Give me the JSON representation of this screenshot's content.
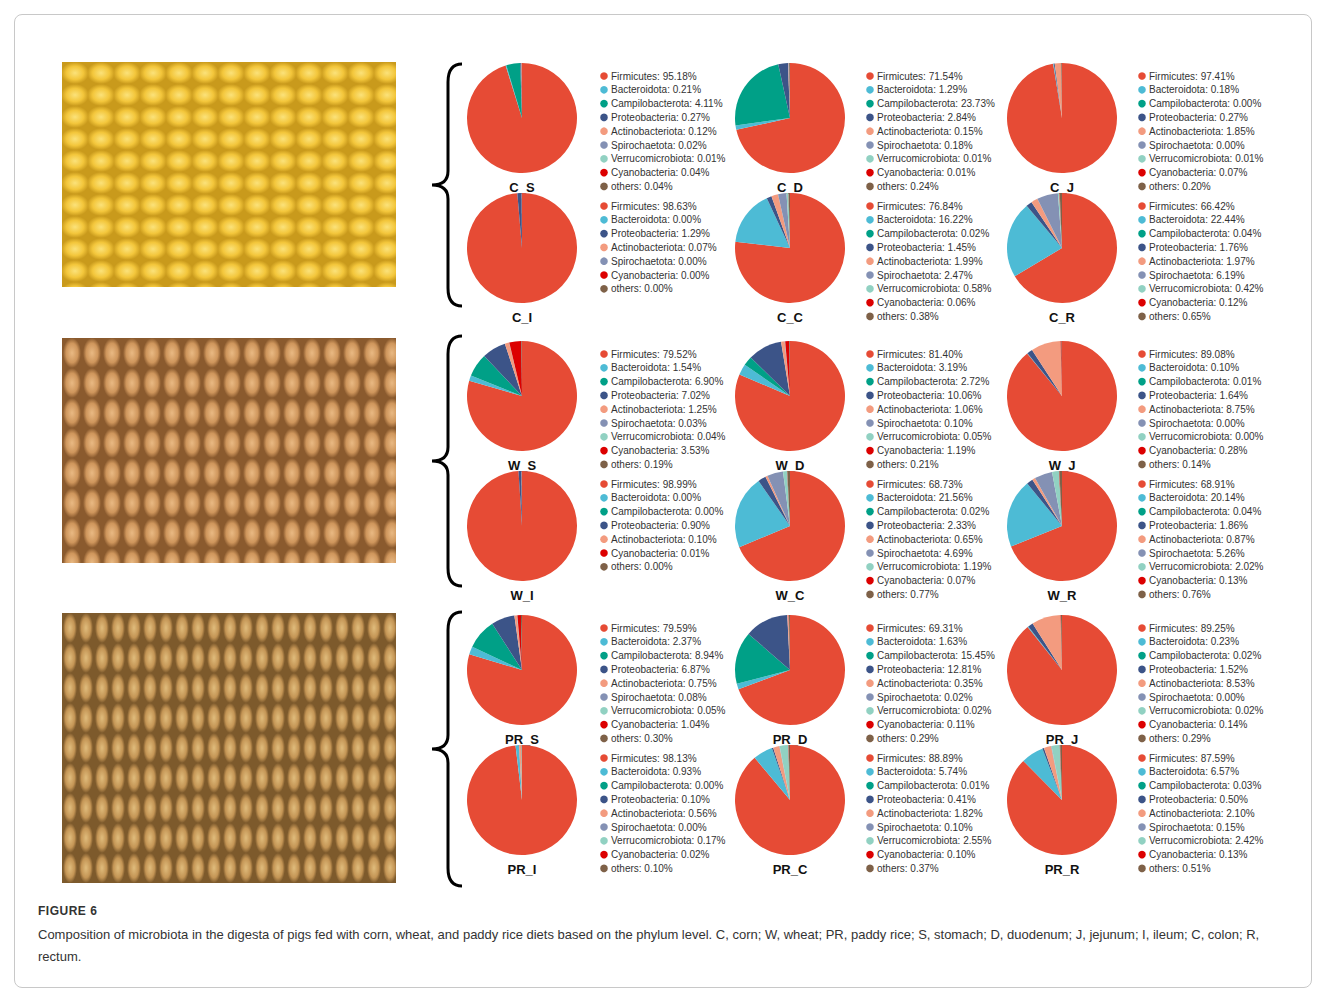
{
  "figure": {
    "label": "FIGURE 6",
    "caption": "Composition of microbiota in the digesta of pigs fed with corn, wheat, and paddy rice diets based on the phylum level. C, corn; W, wheat; PR, paddy rice; S, stomach; D, duodenum; J, jejunum; I, ileum; C, colon; R, rectum."
  },
  "chart_data": [
    {
      "type": "pie",
      "title": "C_S",
      "legend": "right",
      "categories": [
        "Firmicutes",
        "Bacteroidota",
        "Campilobacterota",
        "Proteobacteria",
        "Actinobacteriota",
        "Spirochaetota",
        "Verrucomicrobiota",
        "Cyanobacteria",
        "others"
      ],
      "values": [
        95.18,
        0.21,
        4.11,
        0.27,
        0.12,
        0.02,
        0.01,
        0.04,
        0.04
      ],
      "value_labels": [
        "Firmicutes: 95.18%",
        "Bacteroidota: 0.21%",
        "Campilobacterota: 4.11%",
        "Proteobacteria: 0.27%",
        "Actinobacteriota: 0.12%",
        "Spirochaetota: 0.02%",
        "Verrucomicrobiota: 0.01%",
        "Cyanobacteria: 0.04%",
        "others: 0.04%"
      ],
      "colors": [
        "#E64B35",
        "#4DBBD5",
        "#00A087",
        "#3C5488",
        "#F39B7F",
        "#8491B4",
        "#91D1C2",
        "#DC0000",
        "#7E6148"
      ]
    },
    {
      "type": "pie",
      "title": "C_D",
      "legend": "right",
      "categories": [
        "Firmicutes",
        "Bacteroidota",
        "Campilobacterota",
        "Proteobacteria",
        "Actinobacteriota",
        "Spirochaetota",
        "Verrucomicrobiota",
        "Cyanobacteria",
        "others"
      ],
      "values": [
        71.54,
        1.29,
        23.73,
        2.84,
        0.15,
        0.18,
        0.01,
        0.01,
        0.24
      ],
      "value_labels": [
        "Firmicutes: 71.54%",
        "Bacteroidota: 1.29%",
        "Campilobacterota: 23.73%",
        "Proteobacteria: 2.84%",
        "Actinobacteriota: 0.15%",
        "Spirochaetota: 0.18%",
        "Verrucomicrobiota: 0.01%",
        "Cyanobacteria: 0.01%",
        "others: 0.24%"
      ],
      "colors": [
        "#E64B35",
        "#4DBBD5",
        "#00A087",
        "#3C5488",
        "#F39B7F",
        "#8491B4",
        "#91D1C2",
        "#DC0000",
        "#7E6148"
      ]
    },
    {
      "type": "pie",
      "title": "C_J",
      "legend": "right",
      "categories": [
        "Firmicutes",
        "Bacteroidota",
        "Campilobacterota",
        "Proteobacteria",
        "Actinobacteriota",
        "Spirochaetota",
        "Verrucomicrobiota",
        "Cyanobacteria",
        "others"
      ],
      "values": [
        97.41,
        0.18,
        0.0,
        0.27,
        1.85,
        0.0,
        0.01,
        0.07,
        0.2
      ],
      "value_labels": [
        "Firmicutes: 97.41%",
        "Bacteroidota: 0.18%",
        "Campilobacterota: 0.00%",
        "Proteobacteria: 0.27%",
        "Actinobacteriota: 1.85%",
        "Spirochaetota: 0.00%",
        "Verrucomicrobiota: 0.01%",
        "Cyanobacteria: 0.07%",
        "others: 0.20%"
      ],
      "colors": [
        "#E64B35",
        "#4DBBD5",
        "#00A087",
        "#3C5488",
        "#F39B7F",
        "#8491B4",
        "#91D1C2",
        "#DC0000",
        "#7E6148"
      ]
    },
    {
      "type": "pie",
      "title": "C_I",
      "legend": "right",
      "categories": [
        "Firmicutes",
        "Bacteroidota",
        "Proteobacteria",
        "Actinobacteriota",
        "Spirochaetota",
        "Cyanobacteria",
        "others"
      ],
      "values": [
        98.63,
        0.0,
        1.29,
        0.07,
        0.0,
        0.0,
        0.0
      ],
      "value_labels": [
        "Firmicutes: 98.63%",
        "Bacteroidota: 0.00%",
        "Proteobacteria: 1.29%",
        "Actinobacteriota: 0.07%",
        "Spirochaetota: 0.00%",
        "Cyanobacteria: 0.00%",
        "others: 0.00%"
      ],
      "colors": [
        "#E64B35",
        "#4DBBD5",
        "#3C5488",
        "#F39B7F",
        "#8491B4",
        "#DC0000",
        "#7E6148"
      ]
    },
    {
      "type": "pie",
      "title": "C_C",
      "legend": "right",
      "categories": [
        "Firmicutes",
        "Bacteroidota",
        "Campilobacterota",
        "Proteobacteria",
        "Actinobacteriota",
        "Spirochaetota",
        "Verrucomicrobiota",
        "Cyanobacteria",
        "others"
      ],
      "values": [
        76.84,
        16.22,
        0.02,
        1.45,
        1.99,
        2.47,
        0.58,
        0.06,
        0.38
      ],
      "value_labels": [
        "Firmicutes: 76.84%",
        "Bacteroidota: 16.22%",
        "Campilobacterota: 0.02%",
        "Proteobacteria: 1.45%",
        "Actinobacteriota: 1.99%",
        "Spirochaetota: 2.47%",
        "Verrucomicrobiota: 0.58%",
        "Cyanobacteria: 0.06%",
        "others: 0.38%"
      ],
      "colors": [
        "#E64B35",
        "#4DBBD5",
        "#00A087",
        "#3C5488",
        "#F39B7F",
        "#8491B4",
        "#91D1C2",
        "#DC0000",
        "#7E6148"
      ]
    },
    {
      "type": "pie",
      "title": "C_R",
      "legend": "right",
      "categories": [
        "Firmicutes",
        "Bacteroidota",
        "Campilobacterota",
        "Proteobacteria",
        "Actinobacteriota",
        "Spirochaetota",
        "Verrucomicrobiota",
        "Cyanobacteria",
        "others"
      ],
      "values": [
        66.42,
        22.44,
        0.04,
        1.76,
        1.97,
        6.19,
        0.42,
        0.12,
        0.65
      ],
      "value_labels": [
        "Firmicutes: 66.42%",
        "Bacteroidota: 22.44%",
        "Campilobacterota: 0.04%",
        "Proteobacteria: 1.76%",
        "Actinobacteriota: 1.97%",
        "Spirochaetota: 6.19%",
        "Verrucomicrobiota: 0.42%",
        "Cyanobacteria: 0.12%",
        "others: 0.65%"
      ],
      "colors": [
        "#E64B35",
        "#4DBBD5",
        "#00A087",
        "#3C5488",
        "#F39B7F",
        "#8491B4",
        "#91D1C2",
        "#DC0000",
        "#7E6148"
      ]
    },
    {
      "type": "pie",
      "title": "W_S",
      "legend": "right",
      "categories": [
        "Firmicutes",
        "Bacteroidota",
        "Campilobacterota",
        "Proteobacteria",
        "Actinobacteriota",
        "Spirochaetota",
        "Verrucomicrobiota",
        "Cyanobacteria",
        "others"
      ],
      "values": [
        79.52,
        1.54,
        6.9,
        7.02,
        1.25,
        0.03,
        0.04,
        3.53,
        0.19
      ],
      "value_labels": [
        "Firmicutes: 79.52%",
        "Bacteroidota: 1.54%",
        "Campilobacterota: 6.90%",
        "Proteobacteria: 7.02%",
        "Actinobacteriota: 1.25%",
        "Spirochaetota: 0.03%",
        "Verrucomicrobiota: 0.04%",
        "Cyanobacteria: 3.53%",
        "others: 0.19%"
      ],
      "colors": [
        "#E64B35",
        "#4DBBD5",
        "#00A087",
        "#3C5488",
        "#F39B7F",
        "#8491B4",
        "#91D1C2",
        "#DC0000",
        "#7E6148"
      ]
    },
    {
      "type": "pie",
      "title": "W_D",
      "legend": "right",
      "categories": [
        "Firmicutes",
        "Bacteroidota",
        "Campilobacterota",
        "Proteobacteria",
        "Actinobacteriota",
        "Spirochaetota",
        "Verrucomicrobiota",
        "Cyanobacteria",
        "others"
      ],
      "values": [
        81.4,
        3.19,
        2.72,
        10.06,
        1.06,
        0.1,
        0.05,
        1.19,
        0.21
      ],
      "value_labels": [
        "Firmicutes: 81.40%",
        "Bacteroidota: 3.19%",
        "Campilobacterota: 2.72%",
        "Proteobacteria: 10.06%",
        "Actinobacteriota: 1.06%",
        "Spirochaetota: 0.10%",
        "Verrucomicrobiota: 0.05%",
        "Cyanobacteria: 1.19%",
        "others: 0.21%"
      ],
      "colors": [
        "#E64B35",
        "#4DBBD5",
        "#00A087",
        "#3C5488",
        "#F39B7F",
        "#8491B4",
        "#91D1C2",
        "#DC0000",
        "#7E6148"
      ]
    },
    {
      "type": "pie",
      "title": "W_J",
      "legend": "right",
      "categories": [
        "Firmicutes",
        "Bacteroidota",
        "Campilobacterota",
        "Proteobacteria",
        "Actinobacteriota",
        "Spirochaetota",
        "Verrucomicrobiota",
        "Cyanobacteria",
        "others"
      ],
      "values": [
        89.08,
        0.1,
        0.01,
        1.64,
        8.75,
        0.0,
        0.0,
        0.28,
        0.14
      ],
      "value_labels": [
        "Firmicutes: 89.08%",
        "Bacteroidota: 0.10%",
        "Campilobacterota: 0.01%",
        "Proteobacteria: 1.64%",
        "Actinobacteriota: 8.75%",
        "Spirochaetota: 0.00%",
        "Verrucomicrobiota: 0.00%",
        "Cyanobacteria: 0.28%",
        "others: 0.14%"
      ],
      "colors": [
        "#E64B35",
        "#4DBBD5",
        "#00A087",
        "#3C5488",
        "#F39B7F",
        "#8491B4",
        "#91D1C2",
        "#DC0000",
        "#7E6148"
      ]
    },
    {
      "type": "pie",
      "title": "W_I",
      "legend": "right",
      "categories": [
        "Firmicutes",
        "Bacteroidota",
        "Campilobacterota",
        "Proteobacteria",
        "Actinobacteriota",
        "Cyanobacteria",
        "others"
      ],
      "values": [
        98.99,
        0.0,
        0.0,
        0.9,
        0.1,
        0.01,
        0.0
      ],
      "value_labels": [
        "Firmicutes: 98.99%",
        "Bacteroidota: 0.00%",
        "Campilobacterota: 0.00%",
        "Proteobacteria: 0.90%",
        "Actinobacteriota: 0.10%",
        "Cyanobacteria: 0.01%",
        "others: 0.00%"
      ],
      "colors": [
        "#E64B35",
        "#4DBBD5",
        "#00A087",
        "#3C5488",
        "#F39B7F",
        "#DC0000",
        "#7E6148"
      ]
    },
    {
      "type": "pie",
      "title": "W_C",
      "legend": "right",
      "categories": [
        "Firmicutes",
        "Bacteroidota",
        "Campilobacterota",
        "Proteobacteria",
        "Actinobacteriota",
        "Spirochaetota",
        "Verrucomicrobiota",
        "Cyanobacteria",
        "others"
      ],
      "values": [
        68.73,
        21.56,
        0.02,
        2.33,
        0.65,
        4.69,
        1.19,
        0.07,
        0.77
      ],
      "value_labels": [
        "Firmicutes: 68.73%",
        "Bacteroidota: 21.56%",
        "Campilobacterota: 0.02%",
        "Proteobacteria: 2.33%",
        "Actinobacteriota: 0.65%",
        "Spirochaetota: 4.69%",
        "Verrucomicrobiota: 1.19%",
        "Cyanobacteria: 0.07%",
        "others: 0.77%"
      ],
      "colors": [
        "#E64B35",
        "#4DBBD5",
        "#00A087",
        "#3C5488",
        "#F39B7F",
        "#8491B4",
        "#91D1C2",
        "#DC0000",
        "#7E6148"
      ]
    },
    {
      "type": "pie",
      "title": "W_R",
      "legend": "right",
      "categories": [
        "Firmicutes",
        "Bacteroidota",
        "Campilobacterota",
        "Proteobacteria",
        "Actinobacteriota",
        "Spirochaetota",
        "Verrucomicrobiota",
        "Cyanobacteria",
        "others"
      ],
      "values": [
        68.91,
        20.14,
        0.04,
        1.86,
        0.87,
        5.26,
        2.02,
        0.13,
        0.76
      ],
      "value_labels": [
        "Firmicutes: 68.91%",
        "Bacteroidota: 20.14%",
        "Campilobacterota: 0.04%",
        "Proteobacteria: 1.86%",
        "Actinobacteriota: 0.87%",
        "Spirochaetota: 5.26%",
        "Verrucomicrobiota: 2.02%",
        "Cyanobacteria: 0.13%",
        "others: 0.76%"
      ],
      "colors": [
        "#E64B35",
        "#4DBBD5",
        "#00A087",
        "#3C5488",
        "#F39B7F",
        "#8491B4",
        "#91D1C2",
        "#DC0000",
        "#7E6148"
      ]
    },
    {
      "type": "pie",
      "title": "PR_S",
      "legend": "right",
      "categories": [
        "Firmicutes",
        "Bacteroidota",
        "Campilobacterota",
        "Proteobacteria",
        "Actinobacteriota",
        "Spirochaetota",
        "Verrucomicrobiota",
        "Cyanobacteria",
        "others"
      ],
      "values": [
        79.59,
        2.37,
        8.94,
        6.87,
        0.75,
        0.08,
        0.05,
        1.04,
        0.3
      ],
      "value_labels": [
        "Firmicutes: 79.59%",
        "Bacteroidota: 2.37%",
        "Campilobacterota: 8.94%",
        "Proteobacteria: 6.87%",
        "Actinobacteriota: 0.75%",
        "Spirochaetota: 0.08%",
        "Verrucomicrobiota: 0.05%",
        "Cyanobacteria: 1.04%",
        "others: 0.30%"
      ],
      "colors": [
        "#E64B35",
        "#4DBBD5",
        "#00A087",
        "#3C5488",
        "#F39B7F",
        "#8491B4",
        "#91D1C2",
        "#DC0000",
        "#7E6148"
      ]
    },
    {
      "type": "pie",
      "title": "PR_D",
      "legend": "right",
      "categories": [
        "Firmicutes",
        "Bacteroidota",
        "Campilobacterota",
        "Proteobacteria",
        "Actinobacteriota",
        "Spirochaetota",
        "Verrucomicrobiota",
        "Cyanobacteria",
        "others"
      ],
      "values": [
        69.31,
        1.63,
        15.45,
        12.81,
        0.35,
        0.02,
        0.02,
        0.11,
        0.29
      ],
      "value_labels": [
        "Firmicutes: 69.31%",
        "Bacteroidota: 1.63%",
        "Campilobacterota: 15.45%",
        "Proteobacteria: 12.81%",
        "Actinobacteriota: 0.35%",
        "Spirochaetota: 0.02%",
        "Verrucomicrobiota: 0.02%",
        "Cyanobacteria: 0.11%",
        "others: 0.29%"
      ],
      "colors": [
        "#E64B35",
        "#4DBBD5",
        "#00A087",
        "#3C5488",
        "#F39B7F",
        "#8491B4",
        "#91D1C2",
        "#DC0000",
        "#7E6148"
      ]
    },
    {
      "type": "pie",
      "title": "PR_J",
      "legend": "right",
      "categories": [
        "Firmicutes",
        "Bacteroidota",
        "Campilobacterota",
        "Proteobacteria",
        "Actinobacteriota",
        "Spirochaetota",
        "Verrucomicrobiota",
        "Cyanobacteria",
        "others"
      ],
      "values": [
        89.25,
        0.23,
        0.02,
        1.52,
        8.53,
        0.0,
        0.02,
        0.14,
        0.29
      ],
      "value_labels": [
        "Firmicutes: 89.25%",
        "Bacteroidota: 0.23%",
        "Campilobacterota: 0.02%",
        "Proteobacteria: 1.52%",
        "Actinobacteriota: 8.53%",
        "Spirochaetota: 0.00%",
        "Verrucomicrobiota: 0.02%",
        "Cyanobacteria: 0.14%",
        "others: 0.29%"
      ],
      "colors": [
        "#E64B35",
        "#4DBBD5",
        "#00A087",
        "#3C5488",
        "#F39B7F",
        "#8491B4",
        "#91D1C2",
        "#DC0000",
        "#7E6148"
      ]
    },
    {
      "type": "pie",
      "title": "PR_I",
      "legend": "right",
      "categories": [
        "Firmicutes",
        "Bacteroidota",
        "Campilobacterota",
        "Proteobacteria",
        "Actinobacteriota",
        "Spirochaetota",
        "Verrucomicrobiota",
        "Cyanobacteria",
        "others"
      ],
      "values": [
        98.13,
        0.93,
        0.0,
        0.1,
        0.56,
        0.0,
        0.17,
        0.02,
        0.1
      ],
      "value_labels": [
        "Firmicutes: 98.13%",
        "Bacteroidota: 0.93%",
        "Campilobacterota: 0.00%",
        "Proteobacteria: 0.10%",
        "Actinobacteriota: 0.56%",
        "Spirochaetota: 0.00%",
        "Verrucomicrobiota: 0.17%",
        "Cyanobacteria: 0.02%",
        "others: 0.10%"
      ],
      "colors": [
        "#E64B35",
        "#4DBBD5",
        "#00A087",
        "#3C5488",
        "#F39B7F",
        "#8491B4",
        "#91D1C2",
        "#DC0000",
        "#7E6148"
      ]
    },
    {
      "type": "pie",
      "title": "PR_C",
      "legend": "right",
      "categories": [
        "Firmicutes",
        "Bacteroidota",
        "Campilobacterota",
        "Proteobacteria",
        "Actinobacteriota",
        "Spirochaetota",
        "Verrucomicrobiota",
        "Cyanobacteria",
        "others"
      ],
      "values": [
        88.89,
        5.74,
        0.01,
        0.41,
        1.82,
        0.1,
        2.55,
        0.1,
        0.37
      ],
      "value_labels": [
        "Firmicutes: 88.89%",
        "Bacteroidota: 5.74%",
        "Campilobacterota: 0.01%",
        "Proteobacteria: 0.41%",
        "Actinobacteriota: 1.82%",
        "Spirochaetota: 0.10%",
        "Verrucomicrobiota: 2.55%",
        "Cyanobacteria: 0.10%",
        "others: 0.37%"
      ],
      "colors": [
        "#E64B35",
        "#4DBBD5",
        "#00A087",
        "#3C5488",
        "#F39B7F",
        "#8491B4",
        "#91D1C2",
        "#DC0000",
        "#7E6148"
      ]
    },
    {
      "type": "pie",
      "title": "PR_R",
      "legend": "right",
      "categories": [
        "Firmicutes",
        "Bacteroidota",
        "Campilobacterota",
        "Proteobacteria",
        "Actinobacteriota",
        "Spirochaetota",
        "Verrucomicrobiota",
        "Cyanobacteria",
        "others"
      ],
      "values": [
        87.59,
        6.57,
        0.03,
        0.5,
        2.1,
        0.15,
        2.42,
        0.13,
        0.51
      ],
      "value_labels": [
        "Firmicutes: 87.59%",
        "Bacteroidota: 6.57%",
        "Campilobacterota: 0.03%",
        "Proteobacteria: 0.50%",
        "Actinobacteriota: 2.10%",
        "Spirochaetota: 0.15%",
        "Verrucomicrobiota: 2.42%",
        "Cyanobacteria: 0.13%",
        "others: 0.51%"
      ],
      "colors": [
        "#E64B35",
        "#4DBBD5",
        "#00A087",
        "#3C5488",
        "#F39B7F",
        "#8491B4",
        "#91D1C2",
        "#DC0000",
        "#7E6148"
      ]
    }
  ]
}
